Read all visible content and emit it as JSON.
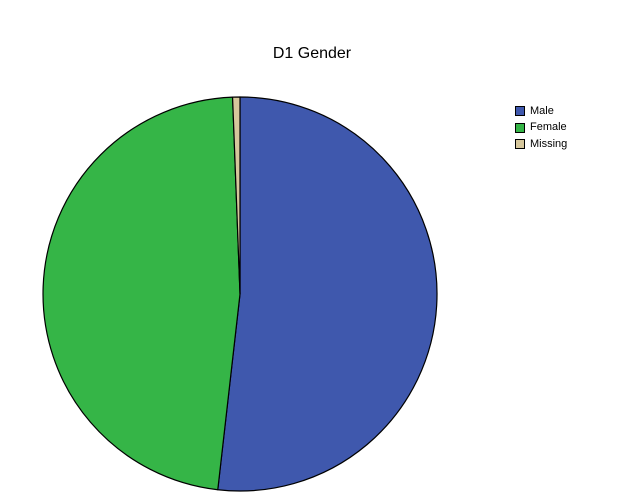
{
  "chart_data": {
    "type": "pie",
    "title": "D1 Gender",
    "legend_position": "top-right",
    "slices": [
      {
        "label": "Male",
        "value": 51.8,
        "color": "#3f58ad"
      },
      {
        "label": "Female",
        "value": 47.6,
        "color": "#35b547"
      },
      {
        "label": "Missing",
        "value": 0.6,
        "color": "#d6c79c"
      }
    ]
  }
}
